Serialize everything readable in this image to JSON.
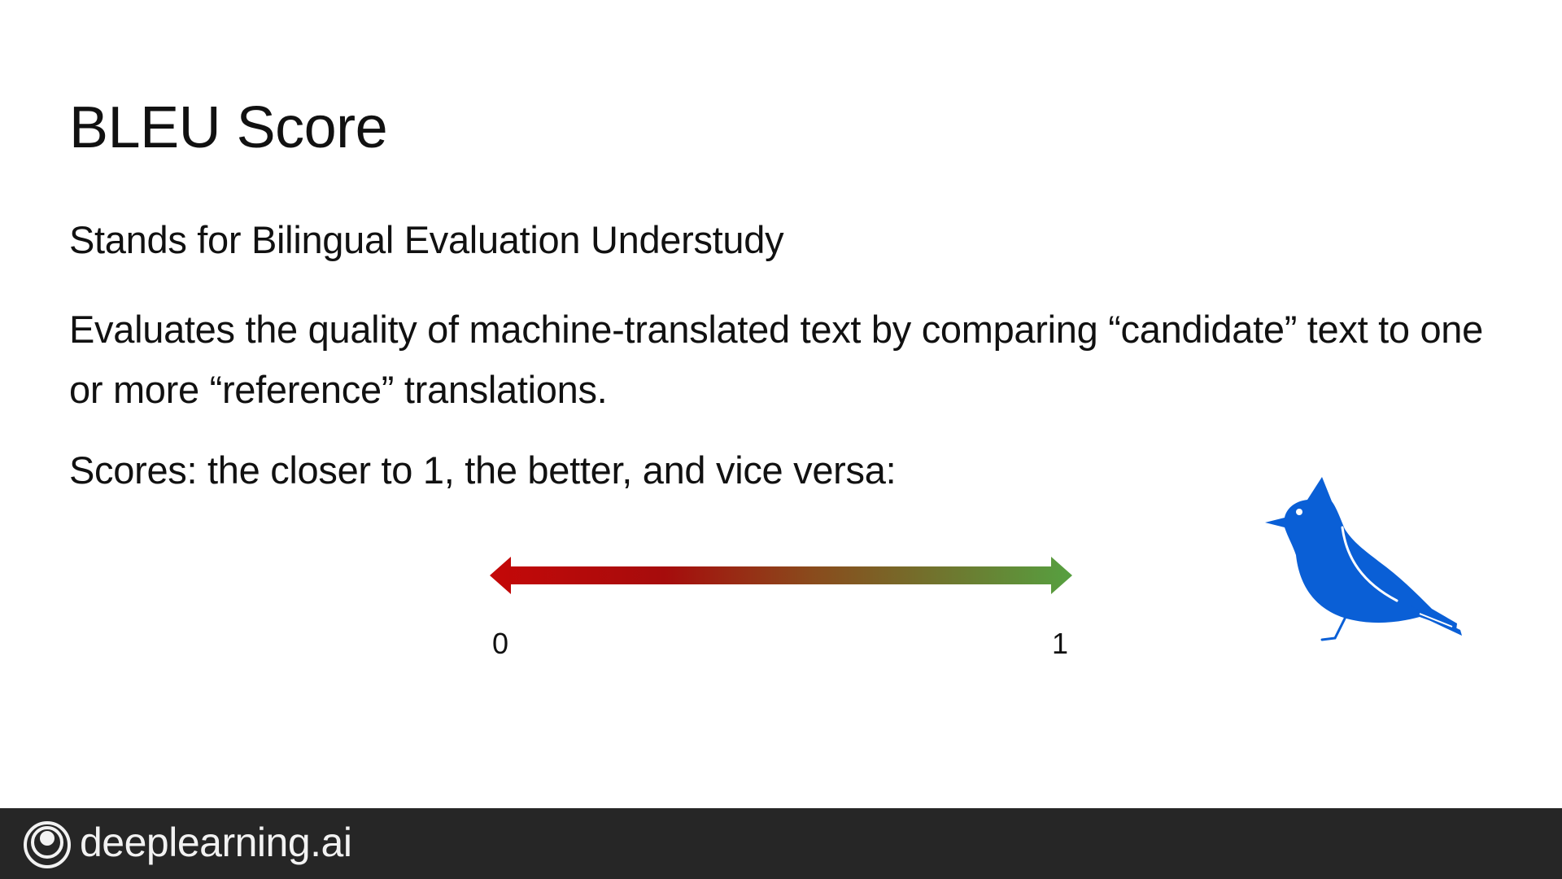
{
  "slide": {
    "title": "BLEU Score",
    "points": [
      "Stands for Bilingual Evaluation Understudy",
      "Evaluates the quality of machine-translated text by comparing “candidate” text to one or more “reference” translations.",
      "Scores: the closer to 1, the better, and vice versa:"
    ]
  },
  "scale": {
    "min_label": "0",
    "max_label": "1",
    "colors": {
      "start": "#c00000",
      "middle": "#a32410",
      "end": "#5a9e3a"
    }
  },
  "illustration": {
    "icon": "bluebird-icon",
    "color": "#0a5fd6"
  },
  "footer": {
    "brand": "deeplearning.ai",
    "logo_icon": "deeplearning-logo-icon",
    "background": "#262626"
  }
}
